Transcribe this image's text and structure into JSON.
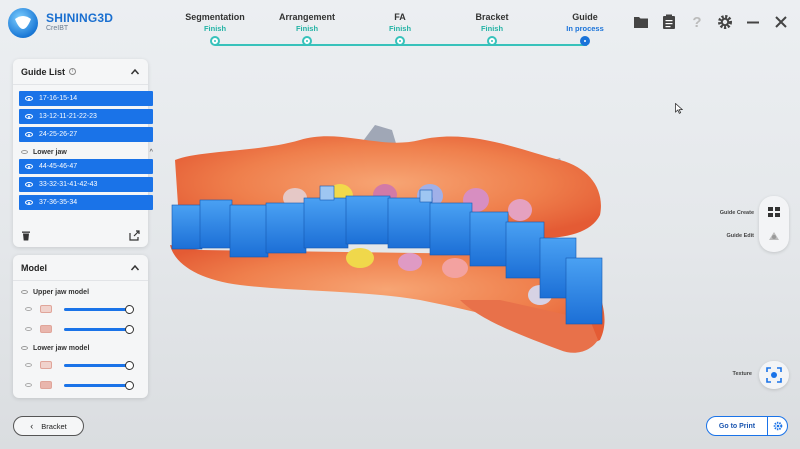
{
  "app": {
    "brand": "SHINING3D",
    "subtitle": "CreIBT"
  },
  "workflow": [
    {
      "name": "Segmentation",
      "status": "Finish",
      "active": false
    },
    {
      "name": "Arrangement",
      "status": "Finish",
      "active": false
    },
    {
      "name": "FA",
      "status": "Finish",
      "active": false
    },
    {
      "name": "Bracket",
      "status": "Finish",
      "active": false
    },
    {
      "name": "Guide",
      "status": "In process",
      "active": true
    }
  ],
  "header_tools": [
    "folder-icon",
    "clipboard-icon",
    "help-icon",
    "gear-icon",
    "minimize-icon",
    "close-icon"
  ],
  "guide_list": {
    "title": "Guide List",
    "upper_items": [
      "17-16-15-14",
      "13-12-11-21-22-23",
      "24-25-26-27"
    ],
    "lower_jaw_label": "Lower jaw",
    "lower_items": [
      "44-45-46-47",
      "33-32-31-41-42-43",
      "37-36-35-34"
    ]
  },
  "model": {
    "title": "Model",
    "upper_label": "Upper jaw model",
    "lower_label": "Lower jaw model",
    "opacity_values": [
      1,
      1,
      1,
      1
    ]
  },
  "side_tools": {
    "guide_create": "Guide Create",
    "guide_edit": "Guide Edit",
    "texture": "Texture"
  },
  "footer": {
    "back_label": "Bracket",
    "print_label": "Go to Print"
  },
  "colors": {
    "accent": "#1a73e8",
    "finish": "#23b3a5",
    "guide_blue": "#2f86e6",
    "gum": "#f0865a"
  }
}
